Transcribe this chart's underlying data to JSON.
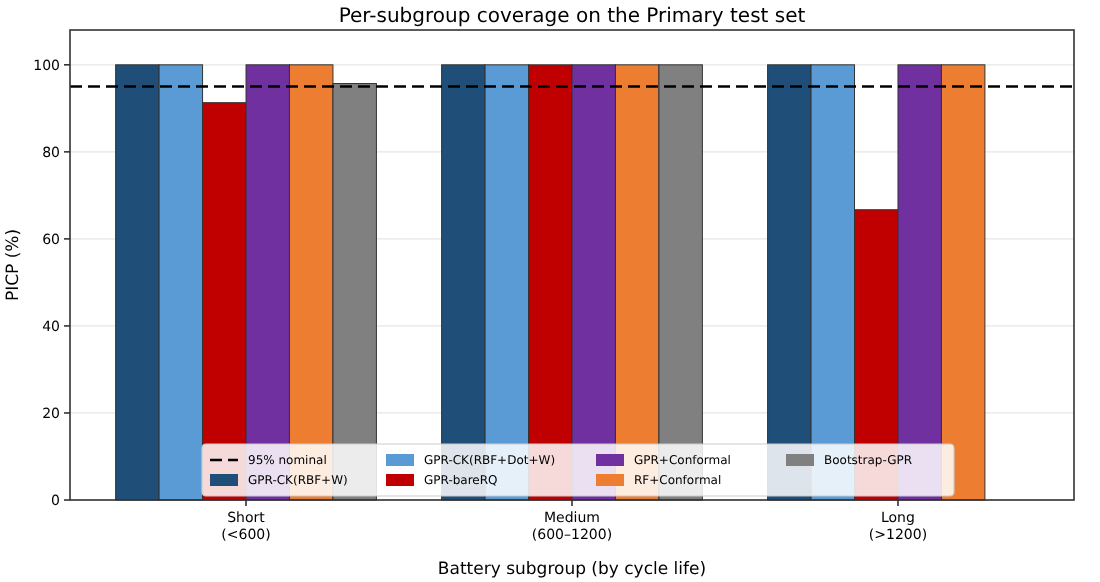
{
  "chart_data": {
    "type": "bar",
    "title": "Per-subgroup coverage on the Primary test set",
    "xlabel": "Battery subgroup (by cycle life)",
    "ylabel": "PICP (%)",
    "categories": [
      "Short\n(<600)",
      "Medium\n(600–1200)",
      "Long\n(>1200)"
    ],
    "series": [
      {
        "name": "GPR-CK(RBF+W)",
        "color": "#1f4e79",
        "values": [
          100,
          100,
          100
        ]
      },
      {
        "name": "GPR-CK(RBF+Dot+W)",
        "color": "#5b9bd5",
        "values": [
          100,
          100,
          100
        ]
      },
      {
        "name": "GPR-bareRQ",
        "color": "#c00000",
        "values": [
          91.3,
          100,
          66.7
        ]
      },
      {
        "name": "GPR+Conformal",
        "color": "#7030a0",
        "values": [
          100,
          100,
          100
        ]
      },
      {
        "name": "RF+Conformal",
        "color": "#ed7d31",
        "values": [
          100,
          100,
          100
        ]
      },
      {
        "name": "Bootstrap-GPR",
        "color": "#808080",
        "values": [
          95.7,
          100,
          null
        ]
      }
    ],
    "ylim": [
      0,
      108
    ],
    "yticks": [
      0,
      20,
      40,
      60,
      80,
      100
    ],
    "grid": "y",
    "legend": "bottom",
    "ref_lines": [
      {
        "axis": "y",
        "value": 95,
        "label": "95% nominal",
        "color": "#000000",
        "line_style": "dashed"
      }
    ]
  }
}
